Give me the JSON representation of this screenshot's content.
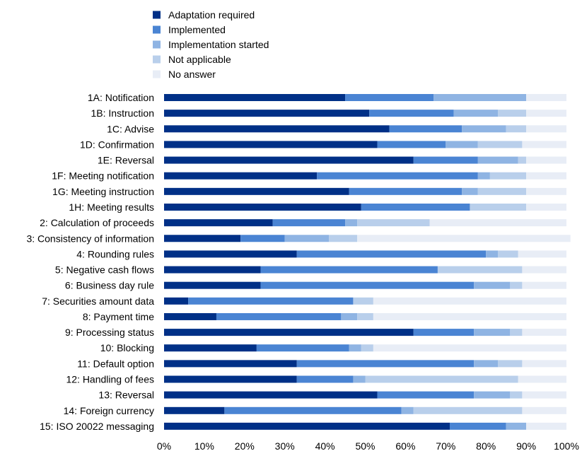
{
  "chart_data": {
    "type": "bar",
    "orientation": "horizontal",
    "stacked": true,
    "title": "",
    "xlabel": "",
    "ylabel": "",
    "xlim": [
      0,
      100
    ],
    "x_ticks": [
      "0%",
      "10%",
      "20%",
      "30%",
      "40%",
      "50%",
      "60%",
      "70%",
      "80%",
      "90%",
      "100%"
    ],
    "grid": false,
    "legend_position": "top-center",
    "categories": [
      "1A: Notification",
      "1B: Instruction",
      "1C: Advise",
      "1D: Confirmation",
      "1E: Reversal",
      "1F: Meeting notification",
      "1G: Meeting instruction",
      "1H: Meeting results",
      "2: Calculation of proceeds",
      "3: Consistency of information",
      "4: Rounding rules",
      "5: Negative cash flows",
      "6: Business day rule",
      "7: Securities amount data",
      "8: Payment time",
      "9: Processing status",
      "10: Blocking",
      "11: Default option",
      "12: Handling of fees",
      "13: Reversal",
      "14: Foreign currency",
      "15: ISO 20022 messaging"
    ],
    "series": [
      {
        "name": "Adaptation required",
        "color": "#003087",
        "values": [
          45,
          51,
          56,
          53,
          62,
          38,
          46,
          49,
          27,
          19,
          33,
          24,
          24,
          6,
          13,
          62,
          23,
          33,
          33,
          53,
          15,
          71
        ]
      },
      {
        "name": "Implemented",
        "color": "#4a84d3",
        "values": [
          22,
          21,
          18,
          17,
          16,
          40,
          28,
          27,
          18,
          11,
          47,
          44,
          53,
          41,
          31,
          15,
          23,
          44,
          14,
          24,
          44,
          14
        ]
      },
      {
        "name": "Implementation started",
        "color": "#8fb4e3",
        "values": [
          23,
          11,
          11,
          8,
          10,
          3,
          4,
          0,
          3,
          11,
          3,
          0,
          9,
          0,
          4,
          9,
          3,
          6,
          3,
          9,
          3,
          5
        ]
      },
      {
        "name": "Not applicable",
        "color": "#b9cfeb",
        "values": [
          0,
          7,
          5,
          11,
          2,
          9,
          12,
          14,
          18,
          7,
          5,
          21,
          3,
          5,
          4,
          3,
          3,
          6,
          38,
          3,
          27,
          0
        ]
      },
      {
        "name": "No answer",
        "color": "#e8edf6",
        "values": [
          10,
          10,
          10,
          11,
          10,
          10,
          10,
          10,
          34,
          53,
          12,
          11,
          11,
          48,
          48,
          11,
          48,
          11,
          12,
          11,
          11,
          10
        ]
      }
    ]
  }
}
